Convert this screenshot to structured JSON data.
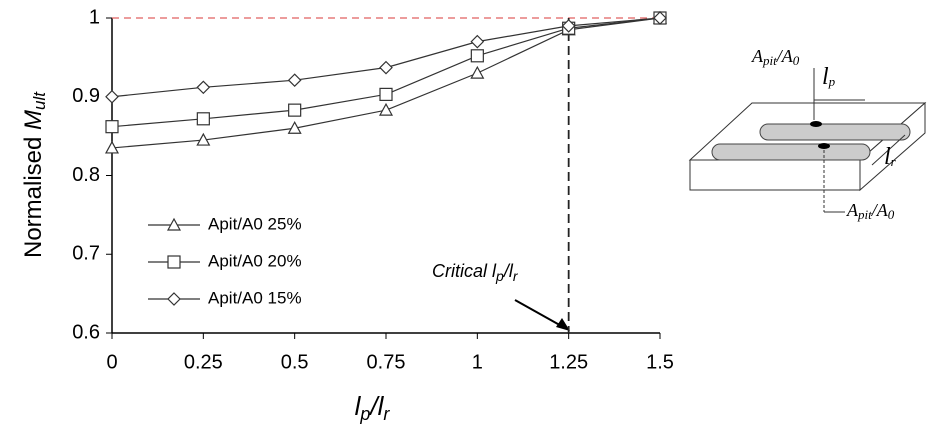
{
  "chart_data": {
    "type": "line",
    "ylabel": [
      "Normalised ",
      "M",
      "ult"
    ],
    "xlabel": [
      "l",
      "p",
      "/",
      "l",
      "r"
    ],
    "annotation": [
      "Critical ",
      "l",
      "p",
      "/",
      "l",
      "r"
    ],
    "x": [
      0,
      0.25,
      0.5,
      0.75,
      1,
      1.25,
      1.5
    ],
    "xlim": [
      0,
      1.5
    ],
    "xticks": [
      0,
      0.25,
      0.5,
      0.75,
      1,
      1.25,
      1.5
    ],
    "ylim": [
      0.6,
      1
    ],
    "yticks": [
      0.6,
      0.7,
      0.8,
      0.9,
      1
    ],
    "reference_y": 1,
    "reference_color": "#e06060",
    "critical_x": 1.25,
    "series": [
      {
        "name": "Apit/A0 25%",
        "marker": "triangle",
        "color": "#333333",
        "values": [
          0.835,
          0.845,
          0.86,
          0.883,
          0.93,
          0.985,
          1
        ]
      },
      {
        "name": "Apit/A0 20%",
        "marker": "square",
        "color": "#333333",
        "values": [
          0.862,
          0.872,
          0.883,
          0.903,
          0.952,
          0.987,
          1
        ]
      },
      {
        "name": "Apit/A0 15%",
        "marker": "diamond",
        "color": "#333333",
        "values": [
          0.9,
          0.912,
          0.921,
          0.937,
          0.97,
          0.99,
          1
        ]
      }
    ],
    "legend": "upper-left-inside"
  },
  "diagram": {
    "top_label": [
      "A",
      "pit",
      "/A",
      "0"
    ],
    "lp_label": [
      "l",
      "p"
    ],
    "lr_label": [
      "l",
      "r"
    ],
    "bottom_label": [
      "A",
      "pit",
      "/A",
      "0"
    ]
  }
}
